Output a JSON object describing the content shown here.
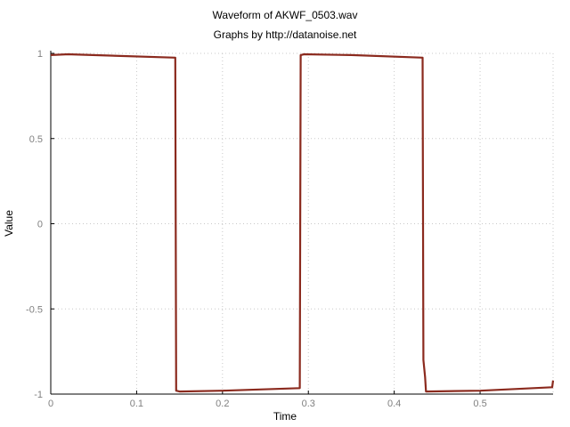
{
  "chart_data": {
    "type": "line",
    "title": "Waveform of AKWF_0503.wav",
    "subtitle": "Graphs by http://datanoise.net",
    "xlabel": "Time",
    "ylabel": "Value",
    "xlim": [
      0,
      0.585
    ],
    "ylim": [
      -1,
      1
    ],
    "xticks": [
      0,
      0.1,
      0.2,
      0.3,
      0.4,
      0.5
    ],
    "xtick_labels": [
      "0",
      "0.1",
      "0.2",
      "0.3",
      "0.4",
      "0.5"
    ],
    "yticks": [
      1,
      0.5,
      0,
      -0.5,
      -1
    ],
    "ytick_labels": [
      "1",
      "0.5",
      "0",
      "-0.5",
      "-1"
    ],
    "grid": true,
    "series": [
      {
        "color": "#8b2a1e",
        "x": [
          0,
          0.02,
          0.145,
          0.146,
          0.15,
          0.2,
          0.29,
          0.291,
          0.295,
          0.35,
          0.433,
          0.434,
          0.436,
          0.437,
          0.5,
          0.584,
          0.585
        ],
        "y": [
          0.99,
          0.995,
          0.975,
          -0.98,
          -0.985,
          -0.98,
          -0.965,
          0.99,
          0.995,
          0.99,
          0.975,
          -0.8,
          -0.9,
          -0.985,
          -0.98,
          -0.96,
          -0.92
        ]
      }
    ]
  }
}
